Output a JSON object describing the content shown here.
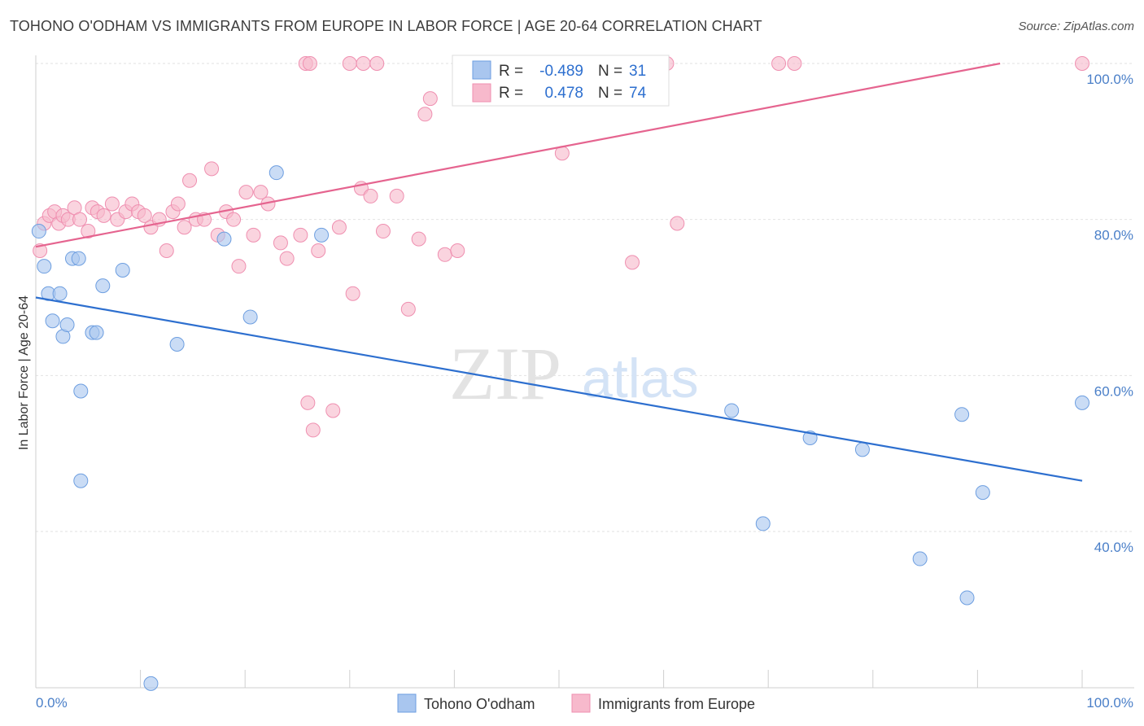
{
  "title": "TOHONO O'ODHAM VS IMMIGRANTS FROM EUROPE IN LABOR FORCE | AGE 20-64 CORRELATION CHART",
  "source": "Source: ZipAtlas.com",
  "watermark": {
    "zip": "ZIP",
    "atlas": "atlas"
  },
  "chart_data": {
    "type": "scatter",
    "title": "TOHONO O'ODHAM VS IMMIGRANTS FROM EUROPE IN LABOR FORCE | AGE 20-64 CORRELATION CHART",
    "xlabel": "",
    "ylabel": "In Labor Force | Age 20-64",
    "xlim": [
      0,
      100
    ],
    "ylim": [
      20,
      100
    ],
    "x_tick_labels": [
      "0.0%",
      "100.0%"
    ],
    "y_ticks": [
      40,
      60,
      80,
      100
    ],
    "y_tick_labels": [
      "40.0%",
      "60.0%",
      "80.0%",
      "100.0%"
    ],
    "grid": true,
    "legend_position": "top-center",
    "stats_legend": [
      {
        "r_label": "R =",
        "r_value": "-0.489",
        "n_label": "N =",
        "n_value": "31"
      },
      {
        "r_label": "R =",
        "r_value": "0.478",
        "n_label": "N =",
        "n_value": "74"
      }
    ],
    "series": [
      {
        "name": "Tohono O'odham",
        "color": "#a9c6ef",
        "stroke": "#6d9ee0",
        "line_color": "#2d6fcf",
        "trend": {
          "x": [
            0,
            100
          ],
          "y": [
            70,
            46.5
          ]
        },
        "points": [
          [
            0.3,
            78.5
          ],
          [
            0.8,
            74
          ],
          [
            1.2,
            70.5
          ],
          [
            1.6,
            67
          ],
          [
            2.3,
            70.5
          ],
          [
            2.6,
            65
          ],
          [
            3.0,
            66.5
          ],
          [
            3.5,
            75
          ],
          [
            4.1,
            75
          ],
          [
            5.4,
            65.5
          ],
          [
            5.8,
            65.5
          ],
          [
            6.4,
            71.5
          ],
          [
            8.3,
            73.5
          ],
          [
            11.0,
            20.5
          ],
          [
            13.5,
            64
          ],
          [
            18.0,
            77.5
          ],
          [
            20.5,
            67.5
          ],
          [
            23.0,
            86
          ],
          [
            27.3,
            78
          ],
          [
            47.5,
            100
          ],
          [
            66.5,
            55.5
          ],
          [
            69.5,
            41
          ],
          [
            74.0,
            52
          ],
          [
            79.0,
            50.5
          ],
          [
            84.5,
            36.5
          ],
          [
            88.5,
            55
          ],
          [
            89.0,
            31.5
          ],
          [
            90.5,
            45
          ],
          [
            100.0,
            56.5
          ],
          [
            4.3,
            58
          ],
          [
            4.3,
            46.5
          ]
        ]
      },
      {
        "name": "Immigrants from Europe",
        "color": "#f7b9cc",
        "stroke": "#ef8fb0",
        "line_color": "#e5648f",
        "trend": {
          "x": [
            0,
            100
          ],
          "y": [
            76.5,
            102
          ]
        },
        "points": [
          [
            0.4,
            76
          ],
          [
            0.8,
            79.5
          ],
          [
            1.3,
            80.5
          ],
          [
            1.8,
            81
          ],
          [
            2.2,
            79.5
          ],
          [
            2.6,
            80.5
          ],
          [
            3.1,
            80
          ],
          [
            3.7,
            81.5
          ],
          [
            4.2,
            80
          ],
          [
            5.0,
            78.5
          ],
          [
            5.4,
            81.5
          ],
          [
            5.9,
            81
          ],
          [
            6.5,
            80.5
          ],
          [
            7.3,
            82
          ],
          [
            7.8,
            80
          ],
          [
            8.6,
            81
          ],
          [
            9.2,
            82
          ],
          [
            9.8,
            81
          ],
          [
            10.4,
            80.5
          ],
          [
            11.0,
            79
          ],
          [
            11.8,
            80
          ],
          [
            12.5,
            76
          ],
          [
            13.1,
            81
          ],
          [
            13.6,
            82
          ],
          [
            14.2,
            79
          ],
          [
            14.7,
            85
          ],
          [
            15.3,
            80
          ],
          [
            16.1,
            80
          ],
          [
            16.8,
            86.5
          ],
          [
            17.4,
            78
          ],
          [
            18.2,
            81
          ],
          [
            18.9,
            80
          ],
          [
            19.4,
            74
          ],
          [
            20.1,
            83.5
          ],
          [
            20.8,
            78
          ],
          [
            21.5,
            83.5
          ],
          [
            22.2,
            82
          ],
          [
            23.4,
            77
          ],
          [
            24.0,
            75
          ],
          [
            25.3,
            78
          ],
          [
            26.0,
            56.5
          ],
          [
            26.5,
            53
          ],
          [
            27.0,
            76
          ],
          [
            28.4,
            55.5
          ],
          [
            29.0,
            79
          ],
          [
            30.3,
            70.5
          ],
          [
            31.1,
            84
          ],
          [
            32.0,
            83
          ],
          [
            33.2,
            78.5
          ],
          [
            34.5,
            83
          ],
          [
            35.6,
            68.5
          ],
          [
            36.6,
            77.5
          ],
          [
            37.2,
            93.5
          ],
          [
            37.7,
            95.5
          ],
          [
            39.1,
            75.5
          ],
          [
            40.3,
            76
          ],
          [
            25.8,
            100
          ],
          [
            26.2,
            100
          ],
          [
            30.0,
            100
          ],
          [
            31.3,
            100
          ],
          [
            32.6,
            100
          ],
          [
            43.2,
            100
          ],
          [
            52.3,
            100
          ],
          [
            56.0,
            100
          ],
          [
            60.3,
            100
          ],
          [
            71.0,
            100
          ],
          [
            72.5,
            100
          ],
          [
            100.0,
            100
          ],
          [
            50.3,
            88.5
          ],
          [
            57.0,
            74.5
          ],
          [
            51.6,
            100
          ],
          [
            56.8,
            100
          ],
          [
            61.3,
            79.5
          ],
          [
            42.9,
            100
          ]
        ]
      }
    ]
  },
  "legend_bottom": [
    {
      "label": "Tohono O'odham"
    },
    {
      "label": "Immigrants from Europe"
    }
  ]
}
